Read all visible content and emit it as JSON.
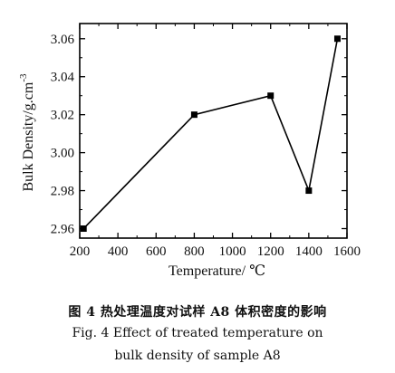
{
  "chart_data": {
    "type": "line",
    "x": [
      220,
      800,
      1200,
      1400,
      1550
    ],
    "series": [
      {
        "values": [
          2.96,
          3.02,
          3.03,
          2.98,
          3.06
        ]
      }
    ],
    "xlabel": "Temperature/ ℃",
    "ylabel": "Bulk Density/g.cm",
    "ylabel_superscript": "-3",
    "xlim": [
      200,
      1600
    ],
    "ylim": [
      2.955,
      3.068
    ],
    "xticks": [
      200,
      400,
      600,
      800,
      1000,
      1200,
      1400,
      1600
    ],
    "yticks": [
      2.96,
      2.98,
      3.0,
      3.02,
      3.04,
      3.06
    ],
    "xtick_labels": [
      "200",
      "400",
      "600",
      "800",
      "1000",
      "1200",
      "1400",
      "1600"
    ],
    "ytick_labels": [
      "2.96",
      "2.98",
      "3.00",
      "3.02",
      "3.04",
      "3.06"
    ],
    "marker": "square",
    "grid": false,
    "line_color": "#000000"
  },
  "caption": {
    "chinese": "图 4 热处理温度对试样 A8 体积密度的影响",
    "english_line1": "Fig. 4 Effect of treated temperature on",
    "english_line2": "bulk density of sample A8"
  }
}
